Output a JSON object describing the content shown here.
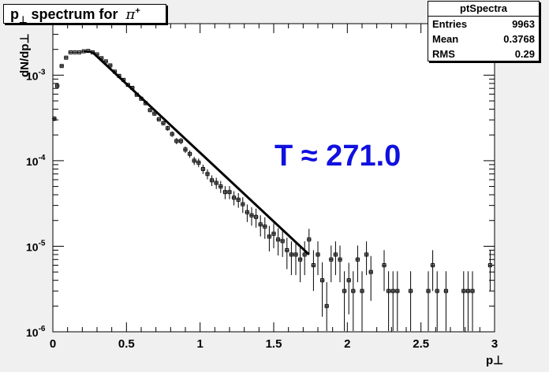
{
  "title": {
    "p": "p",
    "sub": "⊥",
    "rest": " spectrum for",
    "pi": "π",
    "sup": "+"
  },
  "stats": {
    "header": "ptSpectra",
    "rows": [
      {
        "label": "Entries",
        "value": "9963"
      },
      {
        "label": "Mean",
        "value": "0.3768"
      },
      {
        "label": "RMS",
        "value": "0.29"
      }
    ]
  },
  "annotation": {
    "text": "T ≈ 271.0",
    "color": "#1010e0"
  },
  "colors": {
    "pad": "#f0f0f0",
    "frame": "#ffffff",
    "ink": "#000000"
  },
  "chart_data": {
    "type": "scatter",
    "xlabel": "p⊥",
    "ylabel": "dN/dp⊥",
    "xlim": [
      0,
      3
    ],
    "ylim": [
      1e-06,
      0.004
    ],
    "yscale": "log",
    "x_ticks": [
      {
        "v": 0,
        "label": "0"
      },
      {
        "v": 0.5,
        "label": "0.5"
      },
      {
        "v": 1,
        "label": "1"
      },
      {
        "v": 1.5,
        "label": "1.5"
      },
      {
        "v": 2,
        "label": "2"
      },
      {
        "v": 2.5,
        "label": "2.5"
      },
      {
        "v": 3,
        "label": "3"
      }
    ],
    "y_ticks": [
      {
        "v": 1e-06,
        "base": "10",
        "exp": "-6"
      },
      {
        "v": 1e-05,
        "base": "10",
        "exp": "-5"
      },
      {
        "v": 0.0001,
        "base": "10",
        "exp": "-4"
      },
      {
        "v": 0.001,
        "base": "10",
        "exp": "-3"
      }
    ],
    "series": [
      {
        "kind": "points_with_errors",
        "x": [
          0.01,
          0.03,
          0.06,
          0.09,
          0.12,
          0.15,
          0.18,
          0.21,
          0.24,
          0.27,
          0.3,
          0.33,
          0.36,
          0.39,
          0.42,
          0.45,
          0.48,
          0.51,
          0.54,
          0.57,
          0.6,
          0.63,
          0.66,
          0.69,
          0.72,
          0.75,
          0.78,
          0.81,
          0.84,
          0.87,
          0.9,
          0.93,
          0.96,
          0.99,
          1.02,
          1.05,
          1.08,
          1.11,
          1.14,
          1.17,
          1.2,
          1.23,
          1.26,
          1.29,
          1.32,
          1.35,
          1.38,
          1.41,
          1.44,
          1.47,
          1.5,
          1.53,
          1.56,
          1.59,
          1.62,
          1.65,
          1.68,
          1.71,
          1.74,
          1.77,
          1.8,
          1.83,
          1.86,
          1.89,
          1.92,
          1.95,
          1.98,
          2.01,
          2.04,
          2.07,
          2.1,
          2.13,
          2.16,
          2.25,
          2.28,
          2.31,
          2.34,
          2.43,
          2.55,
          2.58,
          2.61,
          2.67,
          2.79,
          2.82,
          2.85,
          2.97
        ],
        "y": [
          0.00031,
          0.00075,
          0.00128,
          0.0016,
          0.00185,
          0.00185,
          0.00185,
          0.0019,
          0.00192,
          0.00185,
          0.00175,
          0.00158,
          0.00145,
          0.0013,
          0.0011,
          0.00098,
          0.00088,
          0.00077,
          0.00071,
          0.00059,
          0.00053,
          0.00047,
          0.00039,
          0.000355,
          0.000305,
          0.000275,
          0.00024,
          0.000205,
          0.00017,
          0.00017,
          0.000135,
          0.00012,
          0.0001,
          9.5e-05,
          8e-05,
          7e-05,
          5.9e-05,
          5.5e-05,
          5e-05,
          4.3e-05,
          4.3e-05,
          3.7e-05,
          3.5e-05,
          3.1e-05,
          2.5e-05,
          2.3e-05,
          2.2e-05,
          1.8e-05,
          1.7e-05,
          1.3e-05,
          1.4e-05,
          1.2e-05,
          1.15e-05,
          9e-06,
          8e-06,
          8e-06,
          7e-06,
          8e-06,
          1.2e-05,
          6e-06,
          8e-06,
          4e-06,
          2e-06,
          7e-06,
          8e-06,
          7e-06,
          3e-06,
          4e-06,
          3e-06,
          7e-06,
          3e-06,
          8e-06,
          5e-06,
          6e-06,
          3e-06,
          3e-06,
          3e-06,
          3e-06,
          3e-06,
          6e-06,
          3e-06,
          3e-06,
          3e-06,
          3e-06,
          3e-06,
          6e-06
        ],
        "yerr_up": [
          2e-05,
          3e-05,
          4e-05,
          4e-05,
          4e-05,
          4e-05,
          4e-05,
          4e-05,
          4e-05,
          4e-05,
          4e-05,
          4e-05,
          4e-05,
          4e-05,
          3.5e-05,
          3.2e-05,
          3e-05,
          2.8e-05,
          2.6e-05,
          2.4e-05,
          2.3e-05,
          2.2e-05,
          2e-05,
          1.9e-05,
          1.8e-05,
          1.7e-05,
          1.6e-05,
          1.5e-05,
          1.4e-05,
          1.4e-05,
          1.2e-05,
          1.2e-05,
          1.1e-05,
          1.1e-05,
          1e-05,
          9.5e-06,
          8.5e-06,
          8.3e-06,
          8e-06,
          7.5e-06,
          7.5e-06,
          7e-06,
          6.8e-06,
          6.5e-06,
          5.8e-06,
          5.6e-06,
          5.5e-06,
          5e-06,
          4.8e-06,
          4.3e-06,
          4.5e-06,
          4.2e-06,
          4e-06,
          3.6e-06,
          3.4e-06,
          3.4e-06,
          3.2e-06,
          3.4e-06,
          4e-06,
          3e-06,
          3.4e-06,
          2.5e-06,
          1.8e-06,
          3.2e-06,
          3.4e-06,
          3.2e-06,
          2.1e-06,
          2.4e-06,
          2.1e-06,
          3.2e-06,
          2.1e-06,
          3.4e-06,
          2.7e-06,
          3e-06,
          2.1e-06,
          2.1e-06,
          2.1e-06,
          2.1e-06,
          2.1e-06,
          3e-06,
          2.1e-06,
          2.1e-06,
          2.1e-06,
          2.1e-06,
          2.1e-06,
          3e-06
        ]
      },
      {
        "kind": "fit_curve",
        "x": [
          0.27,
          1.74
        ],
        "y": [
          0.00185,
          8e-06
        ]
      }
    ]
  }
}
